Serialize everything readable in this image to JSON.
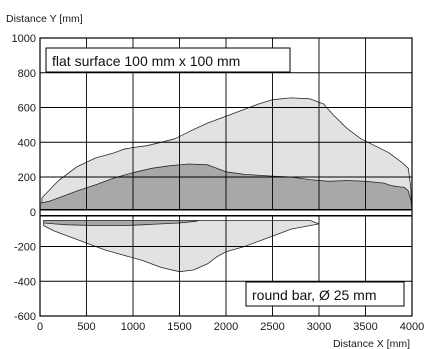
{
  "chart_data": {
    "type": "area",
    "ylabel": "Distance Y [mm]",
    "xlabel": "Distance X [mm]",
    "xlim": [
      0,
      4000
    ],
    "ylim": [
      -600,
      1000
    ],
    "x_ticks": [
      0,
      500,
      1000,
      1500,
      2000,
      2500,
      3000,
      3500,
      4000
    ],
    "y_ticks": [
      1000,
      800,
      600,
      400,
      200,
      0,
      -200,
      -400,
      -600
    ],
    "grid": true,
    "annotations": [
      {
        "text": "flat surface 100 mm x 100 mm",
        "position": "top-left"
      },
      {
        "text": "round bar, Ø 25 mm",
        "position": "bottom-right"
      }
    ],
    "series": [
      {
        "role": "light-region-upper",
        "color": "#e2e2e2",
        "outline": [
          [
            20,
            80
          ],
          [
            200,
            180
          ],
          [
            400,
            260
          ],
          [
            600,
            310
          ],
          [
            800,
            340
          ],
          [
            900,
            360
          ],
          [
            1000,
            370
          ],
          [
            1150,
            380
          ],
          [
            1300,
            400
          ],
          [
            1450,
            420
          ],
          [
            1600,
            460
          ],
          [
            1800,
            510
          ],
          [
            2000,
            550
          ],
          [
            2200,
            590
          ],
          [
            2350,
            620
          ],
          [
            2500,
            645
          ],
          [
            2700,
            655
          ],
          [
            2900,
            650
          ],
          [
            3050,
            620
          ],
          [
            3150,
            560
          ],
          [
            3300,
            480
          ],
          [
            3450,
            420
          ],
          [
            3600,
            380
          ],
          [
            3750,
            340
          ],
          [
            3900,
            280
          ],
          [
            3960,
            250
          ],
          [
            3985,
            150
          ],
          [
            3995,
            40
          ],
          [
            4000,
            0
          ],
          [
            3800,
            0
          ],
          [
            3500,
            0
          ],
          [
            3000,
            0
          ],
          [
            2500,
            0
          ],
          [
            2000,
            0
          ],
          [
            1500,
            0
          ],
          [
            1000,
            0
          ],
          [
            500,
            0
          ],
          [
            20,
            0
          ]
        ]
      },
      {
        "role": "light-region-lower",
        "color": "#e2e2e2",
        "outline": [
          [
            40,
            -50
          ],
          [
            300,
            -50
          ],
          [
            600,
            -50
          ],
          [
            900,
            -50
          ],
          [
            1200,
            -50
          ],
          [
            1500,
            -50
          ],
          [
            1800,
            -50
          ],
          [
            2100,
            -50
          ],
          [
            2500,
            -50
          ],
          [
            2900,
            -50
          ],
          [
            3000,
            -70
          ],
          [
            2900,
            -80
          ],
          [
            2700,
            -100
          ],
          [
            2500,
            -140
          ],
          [
            2200,
            -200
          ],
          [
            2000,
            -230
          ],
          [
            1900,
            -260
          ],
          [
            1800,
            -300
          ],
          [
            1650,
            -335
          ],
          [
            1500,
            -345
          ],
          [
            1300,
            -320
          ],
          [
            1100,
            -280
          ],
          [
            900,
            -250
          ],
          [
            700,
            -220
          ],
          [
            500,
            -180
          ],
          [
            300,
            -140
          ],
          [
            150,
            -110
          ],
          [
            40,
            -80
          ]
        ]
      },
      {
        "role": "dark-region-upper",
        "color": "#a8a8a8",
        "outline": [
          [
            0,
            50
          ],
          [
            100,
            60
          ],
          [
            200,
            80
          ],
          [
            400,
            120
          ],
          [
            600,
            155
          ],
          [
            800,
            195
          ],
          [
            1000,
            225
          ],
          [
            1200,
            250
          ],
          [
            1400,
            265
          ],
          [
            1600,
            275
          ],
          [
            1800,
            270
          ],
          [
            1900,
            250
          ],
          [
            2000,
            230
          ],
          [
            2200,
            215
          ],
          [
            2500,
            205
          ],
          [
            2700,
            200
          ],
          [
            2900,
            185
          ],
          [
            3100,
            175
          ],
          [
            3300,
            180
          ],
          [
            3500,
            175
          ],
          [
            3700,
            165
          ],
          [
            3780,
            150
          ],
          [
            3850,
            145
          ],
          [
            3920,
            140
          ],
          [
            3960,
            120
          ],
          [
            3990,
            60
          ],
          [
            4000,
            0
          ],
          [
            3000,
            0
          ],
          [
            2000,
            0
          ],
          [
            1000,
            0
          ],
          [
            0,
            0
          ]
        ]
      },
      {
        "role": "dark-region-lower",
        "color": "#a8a8a8",
        "outline": [
          [
            40,
            -50
          ],
          [
            300,
            -50
          ],
          [
            600,
            -50
          ],
          [
            900,
            -50
          ],
          [
            1200,
            -50
          ],
          [
            1500,
            -50
          ],
          [
            1700,
            -50
          ],
          [
            1680,
            -55
          ],
          [
            1500,
            -65
          ],
          [
            1300,
            -70
          ],
          [
            1100,
            -75
          ],
          [
            900,
            -80
          ],
          [
            700,
            -80
          ],
          [
            500,
            -78
          ],
          [
            300,
            -75
          ],
          [
            150,
            -70
          ],
          [
            40,
            -65
          ]
        ]
      }
    ]
  }
}
